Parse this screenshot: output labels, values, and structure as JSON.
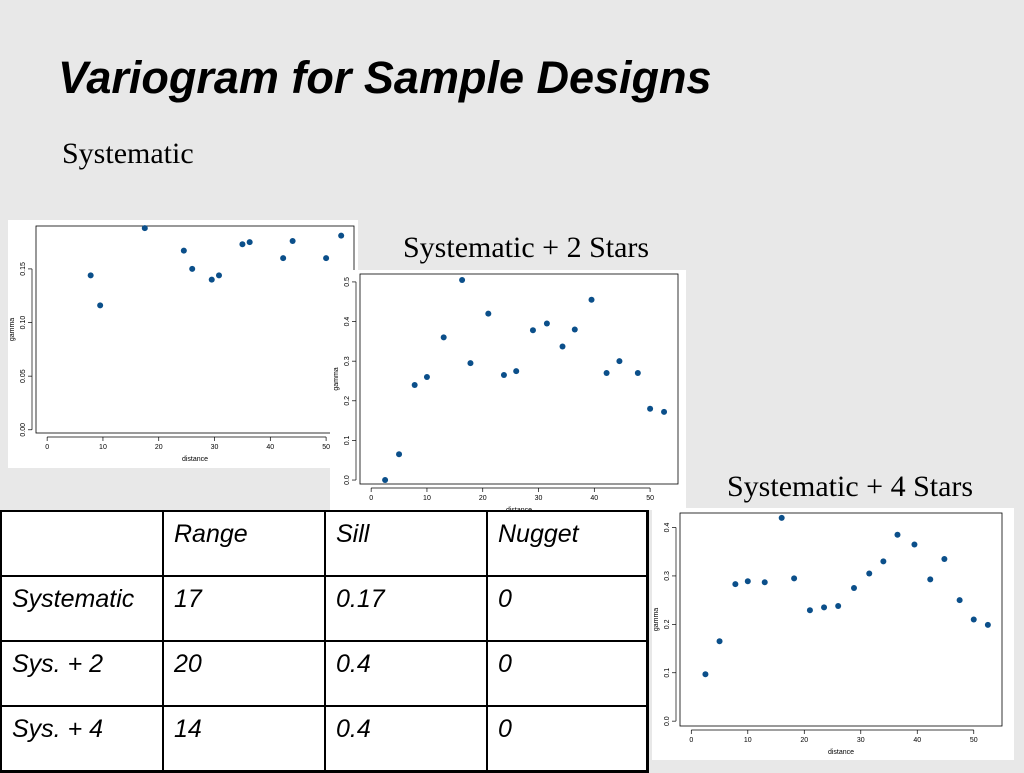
{
  "title": "Variogram for Sample Designs",
  "labels": {
    "systematic": "Systematic",
    "systematic_2": "Systematic + 2 Stars",
    "systematic_4": "Systematic + 4 Stars"
  },
  "table": {
    "headers": [
      "",
      "Range",
      "Sill",
      "Nugget"
    ],
    "rows": [
      [
        "Systematic",
        "17",
        "0.17",
        "0"
      ],
      [
        "Sys. + 2",
        "20",
        "0.4",
        "0"
      ],
      [
        "Sys. + 4",
        "14",
        "0.4",
        "0"
      ]
    ]
  },
  "chart_data": [
    {
      "type": "scatter",
      "xlabel": "distance",
      "ylabel": "gamma",
      "xlim": [
        -2,
        55
      ],
      "ylim": [
        -0.003,
        0.19
      ],
      "xticks": [
        0,
        10,
        20,
        30,
        40,
        50
      ],
      "yticks": [
        0.0,
        0.05,
        0.1,
        0.15
      ],
      "ytick_labels": [
        "0.00",
        "0.05",
        "0.10",
        "0.15"
      ],
      "marker_color": "#0b4f8a",
      "points": [
        [
          7.8,
          0.144
        ],
        [
          9.5,
          0.116
        ],
        [
          17.5,
          0.188
        ],
        [
          24.5,
          0.167
        ],
        [
          26.0,
          0.15
        ],
        [
          29.5,
          0.14
        ],
        [
          30.8,
          0.144
        ],
        [
          35.0,
          0.173
        ],
        [
          36.3,
          0.175
        ],
        [
          42.3,
          0.16
        ],
        [
          44.0,
          0.176
        ],
        [
          50.0,
          0.16
        ],
        [
          52.7,
          0.181
        ]
      ]
    },
    {
      "type": "scatter",
      "xlabel": "distance",
      "ylabel": "gamma",
      "xlim": [
        -2,
        55
      ],
      "ylim": [
        -0.01,
        0.52
      ],
      "xticks": [
        0,
        10,
        20,
        30,
        40,
        50
      ],
      "yticks": [
        0.0,
        0.1,
        0.2,
        0.3,
        0.4,
        0.5
      ],
      "ytick_labels": [
        "0.0",
        "0.1",
        "0.2",
        "0.3",
        "0.4",
        "0.5"
      ],
      "marker_color": "#0b4f8a",
      "points": [
        [
          2.5,
          0.0
        ],
        [
          5.0,
          0.065
        ],
        [
          7.8,
          0.24
        ],
        [
          10.0,
          0.26
        ],
        [
          13.0,
          0.36
        ],
        [
          16.3,
          0.505
        ],
        [
          17.8,
          0.295
        ],
        [
          21.0,
          0.42
        ],
        [
          23.8,
          0.265
        ],
        [
          26.0,
          0.275
        ],
        [
          29.0,
          0.378
        ],
        [
          31.5,
          0.395
        ],
        [
          34.3,
          0.337
        ],
        [
          36.5,
          0.38
        ],
        [
          39.5,
          0.455
        ],
        [
          42.2,
          0.27
        ],
        [
          44.5,
          0.3
        ],
        [
          47.8,
          0.27
        ],
        [
          50.0,
          0.18
        ],
        [
          52.5,
          0.172
        ]
      ]
    },
    {
      "type": "scatter",
      "xlabel": "distance",
      "ylabel": "gamma",
      "xlim": [
        -2,
        55
      ],
      "ylim": [
        -0.01,
        0.43
      ],
      "xticks": [
        0,
        10,
        20,
        30,
        40,
        50
      ],
      "yticks": [
        0.0,
        0.1,
        0.2,
        0.3,
        0.4
      ],
      "ytick_labels": [
        "0.0",
        "0.1",
        "0.2",
        "0.3",
        "0.4"
      ],
      "marker_color": "#0b4f8a",
      "points": [
        [
          2.5,
          0.097
        ],
        [
          5.0,
          0.165
        ],
        [
          7.8,
          0.283
        ],
        [
          10.0,
          0.289
        ],
        [
          13.0,
          0.287
        ],
        [
          16.0,
          0.42
        ],
        [
          18.2,
          0.295
        ],
        [
          21.0,
          0.229
        ],
        [
          23.5,
          0.235
        ],
        [
          26.0,
          0.238
        ],
        [
          28.8,
          0.275
        ],
        [
          31.5,
          0.305
        ],
        [
          34.0,
          0.33
        ],
        [
          36.5,
          0.385
        ],
        [
          39.5,
          0.365
        ],
        [
          42.3,
          0.293
        ],
        [
          44.8,
          0.335
        ],
        [
          47.5,
          0.25
        ],
        [
          50.0,
          0.21
        ],
        [
          52.5,
          0.199
        ]
      ]
    }
  ]
}
